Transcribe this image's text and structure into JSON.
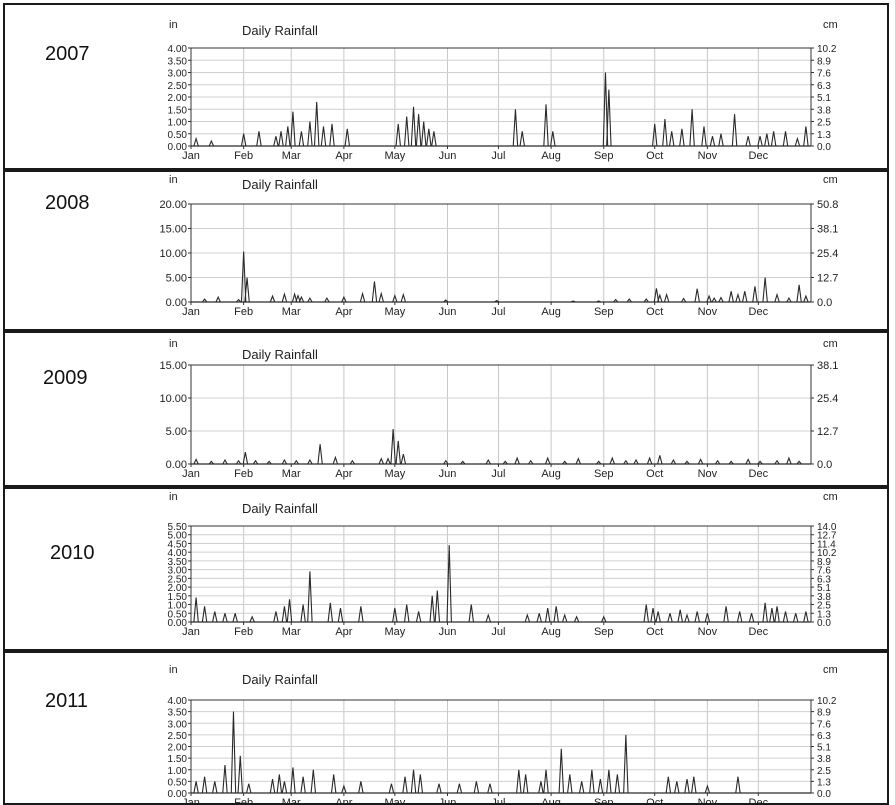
{
  "chart_data": [
    {
      "type": "line",
      "year_label": "2007",
      "title": "Daily Rainfall",
      "left_unit": "in",
      "right_unit": "cm",
      "x_ticks": [
        "Jan",
        "Feb",
        "Mar",
        "Apr",
        "May",
        "Jun",
        "Jul",
        "Aug",
        "Sep",
        "Oct",
        "Nov",
        "Dec"
      ],
      "y_left_ticks": [
        "4.00",
        "3.50",
        "3.00",
        "2.50",
        "2.00",
        "1.50",
        "1.00",
        "0.50",
        "0.00"
      ],
      "y_right_ticks": [
        "10.2",
        "8.9",
        "7.6",
        "6.3",
        "5.1",
        "3.8",
        "2.5",
        "1.3",
        "0.0"
      ],
      "ylim": [
        0,
        4
      ],
      "grid": true,
      "series": [
        {
          "x": [
            3,
            12,
            31,
            40,
            50,
            53,
            57,
            60,
            65,
            70,
            74,
            78,
            83,
            92,
            122,
            127,
            131,
            134,
            137,
            140,
            143,
            191,
            195,
            209,
            213,
            244,
            246,
            273,
            279,
            283,
            289,
            295,
            302,
            307,
            312,
            320,
            328,
            335,
            339,
            343,
            350,
            357,
            362
          ],
          "values": [
            0.3,
            0.2,
            0.5,
            0.6,
            0.4,
            0.6,
            0.8,
            1.4,
            0.6,
            1.0,
            1.8,
            0.8,
            0.9,
            0.7,
            0.9,
            1.2,
            1.6,
            1.3,
            1.0,
            0.7,
            0.6,
            1.5,
            0.6,
            1.7,
            0.6,
            3.0,
            2.3,
            0.9,
            1.1,
            0.6,
            0.7,
            1.5,
            0.8,
            0.4,
            0.5,
            1.3,
            0.4,
            0.4,
            0.5,
            0.6,
            0.6,
            0.3,
            0.8
          ]
        }
      ]
    },
    {
      "type": "line",
      "year_label": "2008",
      "title": "Daily Rainfall",
      "left_unit": "in",
      "right_unit": "cm",
      "x_ticks": [
        "Jan",
        "Feb",
        "Mar",
        "Apr",
        "May",
        "Jun",
        "Jul",
        "Aug",
        "Sep",
        "Oct",
        "Nov",
        "Dec"
      ],
      "y_left_ticks": [
        "20.00",
        "15.00",
        "10.00",
        "5.00",
        "0.00"
      ],
      "y_right_ticks": [
        "50.8",
        "38.1",
        "25.4",
        "12.7",
        "0.0"
      ],
      "ylim": [
        0,
        20
      ],
      "grid": true,
      "series": [
        {
          "x": [
            8,
            16,
            28,
            31,
            33,
            48,
            55,
            61,
            63,
            65,
            70,
            80,
            90,
            101,
            108,
            112,
            120,
            125,
            150,
            180,
            225,
            240,
            250,
            258,
            268,
            274,
            276,
            280,
            290,
            298,
            305,
            308,
            312,
            318,
            322,
            326,
            332,
            338,
            345,
            352,
            358,
            362
          ],
          "values": [
            0.6,
            1.0,
            0.5,
            10.3,
            5.0,
            1.2,
            1.6,
            1.6,
            1.3,
            1.0,
            0.8,
            0.8,
            1.0,
            1.7,
            4.2,
            1.7,
            1.3,
            1.5,
            0.4,
            0.3,
            0.2,
            0.2,
            0.5,
            0.6,
            0.6,
            2.8,
            1.4,
            1.5,
            0.7,
            2.7,
            1.2,
            0.8,
            0.9,
            2.2,
            1.5,
            2.2,
            3.2,
            5.0,
            1.5,
            0.8,
            3.5,
            1.2
          ]
        }
      ]
    },
    {
      "type": "line",
      "year_label": "2009",
      "title": "Daily Rainfall",
      "left_unit": "in",
      "right_unit": "cm",
      "x_ticks": [
        "Jan",
        "Feb",
        "Mar",
        "Apr",
        "May",
        "Jun",
        "Jul",
        "Aug",
        "Sep",
        "Oct",
        "Nov",
        "Dec"
      ],
      "y_left_ticks": [
        "15.00",
        "10.00",
        "5.00",
        "0.00"
      ],
      "y_right_ticks": [
        "38.1",
        "25.4",
        "12.7",
        "0.0"
      ],
      "ylim": [
        0,
        15
      ],
      "grid": true,
      "series": [
        {
          "x": [
            3,
            12,
            20,
            28,
            32,
            38,
            46,
            55,
            62,
            70,
            76,
            85,
            95,
            112,
            116,
            119,
            122,
            125,
            150,
            160,
            175,
            185,
            192,
            200,
            210,
            220,
            228,
            240,
            248,
            256,
            262,
            270,
            276,
            284,
            292,
            300,
            310,
            318,
            328,
            335,
            345,
            352,
            358
          ],
          "values": [
            0.7,
            0.4,
            0.6,
            0.5,
            1.8,
            0.5,
            0.4,
            0.6,
            0.5,
            0.6,
            3.0,
            1.0,
            0.5,
            0.8,
            0.8,
            5.3,
            3.5,
            1.5,
            0.5,
            0.4,
            0.6,
            0.4,
            0.9,
            0.5,
            0.9,
            0.4,
            0.8,
            0.4,
            0.9,
            0.5,
            0.6,
            0.9,
            1.3,
            0.6,
            0.4,
            0.7,
            0.5,
            0.4,
            0.7,
            0.4,
            0.5,
            0.9,
            0.4
          ]
        }
      ]
    },
    {
      "type": "line",
      "year_label": "2010",
      "title": "Daily Rainfall",
      "left_unit": "in",
      "right_unit": "cm",
      "x_ticks": [
        "Jan",
        "Feb",
        "Mar",
        "Apr",
        "May",
        "Jun",
        "Jul",
        "Aug",
        "Sep",
        "Oct",
        "Nov",
        "Dec"
      ],
      "y_left_ticks": [
        "5.50",
        "5.00",
        "4.50",
        "4.00",
        "3.50",
        "3.00",
        "2.50",
        "2.00",
        "1.50",
        "1.00",
        "0.50",
        "0.00"
      ],
      "y_right_ticks": [
        "14.0",
        "12.7",
        "11.4",
        "10.2",
        "8.9",
        "7.6",
        "6.3",
        "5.1",
        "3.8",
        "2.5",
        "1.3",
        "0.0"
      ],
      "ylim": [
        0,
        5.5
      ],
      "grid": true,
      "series": [
        {
          "x": [
            3,
            8,
            14,
            20,
            26,
            36,
            50,
            55,
            58,
            66,
            70,
            82,
            88,
            100,
            120,
            127,
            134,
            142,
            145,
            152,
            165,
            175,
            198,
            205,
            210,
            215,
            220,
            227,
            243,
            268,
            272,
            275,
            282,
            288,
            292,
            298,
            304,
            315,
            323,
            330,
            338,
            342,
            345,
            350,
            356,
            362
          ],
          "values": [
            1.4,
            0.9,
            0.6,
            0.5,
            0.5,
            0.3,
            0.6,
            0.9,
            1.3,
            1.0,
            2.9,
            1.1,
            0.8,
            0.9,
            0.8,
            1.0,
            0.6,
            1.5,
            1.8,
            4.4,
            1.0,
            0.4,
            0.4,
            0.5,
            0.8,
            0.9,
            0.4,
            0.3,
            0.3,
            1.0,
            0.8,
            0.6,
            0.5,
            0.7,
            0.4,
            0.6,
            0.5,
            0.9,
            0.6,
            0.5,
            1.1,
            0.8,
            0.9,
            0.6,
            0.5,
            0.6
          ]
        }
      ]
    },
    {
      "type": "line",
      "year_label": "2011",
      "title": "Daily Rainfall",
      "left_unit": "in",
      "right_unit": "cm",
      "x_ticks": [
        "Jan",
        "Feb",
        "Mar",
        "Apr",
        "May",
        "Jun",
        "Jul",
        "Aug",
        "Sep",
        "Oct",
        "Nov",
        "Dec"
      ],
      "y_left_ticks": [
        "4.00",
        "3.50",
        "3.00",
        "2.50",
        "2.00",
        "1.50",
        "1.00",
        "0.50",
        "0.00"
      ],
      "y_right_ticks": [
        "10.2",
        "8.9",
        "7.6",
        "6.3",
        "5.1",
        "3.8",
        "2.5",
        "1.3",
        "0.0"
      ],
      "ylim": [
        0,
        4
      ],
      "grid": true,
      "series": [
        {
          "x": [
            3,
            8,
            14,
            20,
            25,
            29,
            34,
            48,
            52,
            55,
            60,
            66,
            72,
            84,
            90,
            100,
            118,
            126,
            131,
            135,
            146,
            158,
            168,
            176,
            193,
            197,
            206,
            209,
            218,
            223,
            230,
            236,
            241,
            246,
            251,
            256,
            281,
            286,
            292,
            296,
            304,
            322
          ],
          "values": [
            0.5,
            0.7,
            0.5,
            1.2,
            3.5,
            1.6,
            0.4,
            0.6,
            0.8,
            0.5,
            1.1,
            0.7,
            1.0,
            0.8,
            0.3,
            0.5,
            0.4,
            0.7,
            1.0,
            0.8,
            0.4,
            0.4,
            0.5,
            0.4,
            1.0,
            0.8,
            0.5,
            1.0,
            1.9,
            0.8,
            0.5,
            1.0,
            0.6,
            1.0,
            0.8,
            2.5,
            0.7,
            0.5,
            0.6,
            0.7,
            0.3,
            0.7
          ]
        }
      ]
    }
  ]
}
